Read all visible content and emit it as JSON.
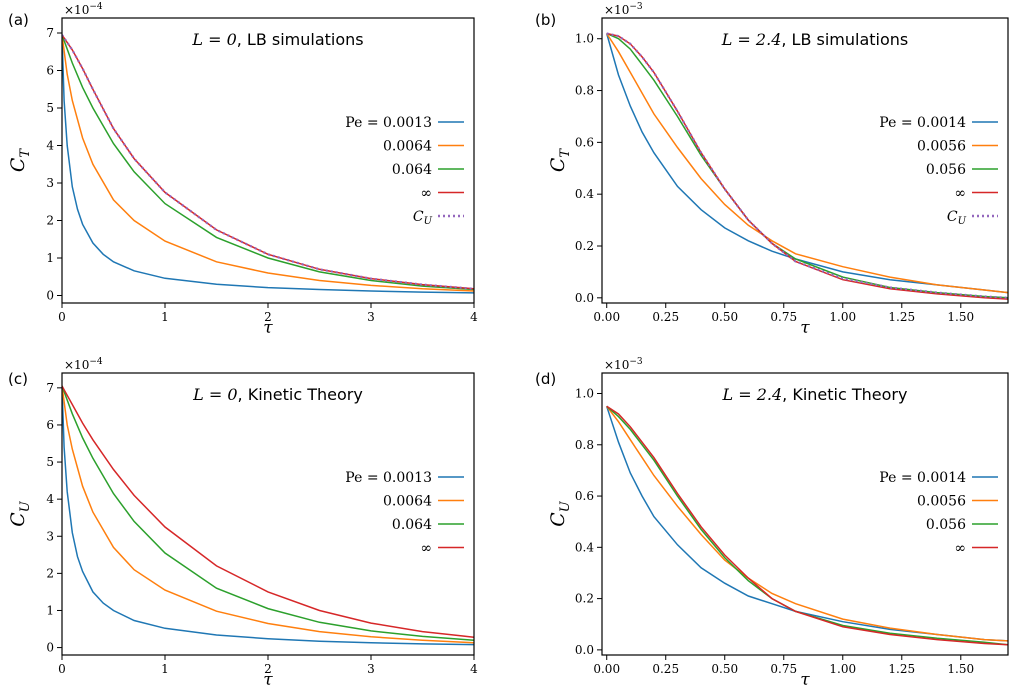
{
  "chart_data": [
    {
      "type": "line",
      "panel_label": "(a)",
      "title_math": "L = 0",
      "title_text": ", LB simulations",
      "scale_label": "×10",
      "scale_exp": "−4",
      "xlabel": "τ",
      "ylabel": "C",
      "ylabel_sub": "T",
      "xlim": [
        0,
        4
      ],
      "ylim": [
        -0.2,
        7.4
      ],
      "xticks": [
        0,
        1,
        2,
        3,
        4
      ],
      "yticks": [
        0,
        1,
        2,
        3,
        4,
        5,
        6,
        7
      ],
      "xtick_labels": [
        "0",
        "1",
        "2",
        "3",
        "4"
      ],
      "ytick_labels": [
        "0",
        "1",
        "2",
        "3",
        "4",
        "5",
        "6",
        "7"
      ],
      "legend": [
        "Pe = 0.0013",
        "0.0064",
        "0.064",
        "∞",
        "C_U"
      ],
      "series": [
        {
          "name": "Pe = 0.0013",
          "color": "#1f77b4",
          "x": [
            0,
            0.02,
            0.05,
            0.1,
            0.15,
            0.2,
            0.3,
            0.4,
            0.5,
            0.7,
            1.0,
            1.5,
            2.0,
            2.5,
            3.0,
            3.5,
            4.0
          ],
          "y": [
            6.95,
            5.2,
            4.0,
            2.9,
            2.3,
            1.9,
            1.4,
            1.1,
            0.9,
            0.66,
            0.46,
            0.3,
            0.21,
            0.16,
            0.12,
            0.09,
            0.07
          ]
        },
        {
          "name": "0.0064",
          "color": "#ff7f0e",
          "x": [
            0,
            0.05,
            0.1,
            0.2,
            0.3,
            0.5,
            0.7,
            1.0,
            1.5,
            2.0,
            2.5,
            3.0,
            3.5,
            4.0
          ],
          "y": [
            6.95,
            5.9,
            5.2,
            4.2,
            3.5,
            2.55,
            2.0,
            1.45,
            0.9,
            0.6,
            0.4,
            0.27,
            0.18,
            0.12
          ]
        },
        {
          "name": "0.064",
          "color": "#2ca02c",
          "x": [
            0,
            0.1,
            0.2,
            0.3,
            0.5,
            0.7,
            1.0,
            1.5,
            2.0,
            2.5,
            3.0,
            3.5,
            4.0
          ],
          "y": [
            6.95,
            6.2,
            5.55,
            5.0,
            4.05,
            3.3,
            2.45,
            1.55,
            1.0,
            0.63,
            0.4,
            0.25,
            0.16
          ]
        },
        {
          "name": "∞",
          "color": "#d62728",
          "x": [
            0,
            0.1,
            0.2,
            0.3,
            0.5,
            0.7,
            1.0,
            1.5,
            2.0,
            2.5,
            3.0,
            3.5,
            4.0
          ],
          "y": [
            6.95,
            6.55,
            6.05,
            5.5,
            4.45,
            3.65,
            2.75,
            1.75,
            1.1,
            0.7,
            0.45,
            0.29,
            0.18
          ]
        },
        {
          "name": "C_U",
          "color": "#9467bd",
          "dash": true,
          "x": [
            0,
            0.1,
            0.2,
            0.3,
            0.5,
            0.7,
            1.0,
            1.5,
            2.0,
            2.5,
            3.0,
            3.5,
            4.0
          ],
          "y": [
            6.95,
            6.55,
            6.05,
            5.5,
            4.45,
            3.65,
            2.75,
            1.75,
            1.1,
            0.7,
            0.45,
            0.29,
            0.18
          ]
        }
      ]
    },
    {
      "type": "line",
      "panel_label": "(b)",
      "title_math": "L = 2.4",
      "title_text": ", LB simulations",
      "scale_label": "×10",
      "scale_exp": "−3",
      "xlabel": "τ",
      "ylabel": "C",
      "ylabel_sub": "T",
      "xlim": [
        -0.02,
        1.7
      ],
      "ylim": [
        -0.02,
        1.08
      ],
      "xticks": [
        0,
        0.25,
        0.5,
        0.75,
        1.0,
        1.25,
        1.5
      ],
      "yticks": [
        0,
        0.2,
        0.4,
        0.6,
        0.8,
        1.0
      ],
      "xtick_labels": [
        "0.00",
        "0.25",
        "0.50",
        "0.75",
        "1.00",
        "1.25",
        "1.50"
      ],
      "ytick_labels": [
        "0.0",
        "0.2",
        "0.4",
        "0.6",
        "0.8",
        "1.0"
      ],
      "legend": [
        "Pe = 0.0014",
        "0.0056",
        "0.056",
        "∞",
        "C_U"
      ],
      "series": [
        {
          "name": "Pe = 0.0014",
          "color": "#1f77b4",
          "x": [
            0,
            0.05,
            0.1,
            0.15,
            0.2,
            0.3,
            0.4,
            0.5,
            0.6,
            0.7,
            0.8,
            1.0,
            1.2,
            1.4,
            1.6,
            1.7
          ],
          "y": [
            1.02,
            0.86,
            0.74,
            0.64,
            0.56,
            0.43,
            0.34,
            0.27,
            0.22,
            0.18,
            0.15,
            0.1,
            0.07,
            0.05,
            0.03,
            0.02
          ]
        },
        {
          "name": "0.0056",
          "color": "#ff7f0e",
          "x": [
            0,
            0.05,
            0.1,
            0.15,
            0.2,
            0.3,
            0.4,
            0.5,
            0.6,
            0.7,
            0.8,
            1.0,
            1.2,
            1.4,
            1.6,
            1.7
          ],
          "y": [
            1.02,
            0.95,
            0.87,
            0.79,
            0.71,
            0.58,
            0.46,
            0.36,
            0.28,
            0.22,
            0.17,
            0.12,
            0.08,
            0.05,
            0.03,
            0.02
          ]
        },
        {
          "name": "0.056",
          "color": "#2ca02c",
          "x": [
            0,
            0.05,
            0.1,
            0.15,
            0.2,
            0.3,
            0.4,
            0.5,
            0.6,
            0.7,
            0.8,
            1.0,
            1.2,
            1.4,
            1.6,
            1.7
          ],
          "y": [
            1.02,
            1.0,
            0.96,
            0.9,
            0.84,
            0.7,
            0.55,
            0.42,
            0.3,
            0.21,
            0.15,
            0.08,
            0.04,
            0.02,
            0.005,
            0.0
          ]
        },
        {
          "name": "∞",
          "color": "#d62728",
          "x": [
            0,
            0.05,
            0.1,
            0.15,
            0.2,
            0.3,
            0.4,
            0.5,
            0.6,
            0.7,
            0.8,
            1.0,
            1.2,
            1.4,
            1.6,
            1.7
          ],
          "y": [
            1.02,
            1.01,
            0.98,
            0.93,
            0.87,
            0.72,
            0.56,
            0.42,
            0.3,
            0.21,
            0.14,
            0.07,
            0.035,
            0.015,
            0.0,
            -0.005
          ]
        },
        {
          "name": "C_U",
          "color": "#9467bd",
          "dash": true,
          "x": [
            0,
            0.05,
            0.1,
            0.15,
            0.2,
            0.3,
            0.4,
            0.5,
            0.6,
            0.7,
            0.8,
            1.0,
            1.2,
            1.4,
            1.6,
            1.7
          ],
          "y": [
            1.02,
            1.01,
            0.98,
            0.93,
            0.87,
            0.72,
            0.56,
            0.42,
            0.3,
            0.21,
            0.14,
            0.075,
            0.04,
            0.02,
            0.005,
            0.0
          ]
        }
      ]
    },
    {
      "type": "line",
      "panel_label": "(c)",
      "title_math": "L = 0",
      "title_text": ", Kinetic Theory",
      "scale_label": "×10",
      "scale_exp": "−4",
      "xlabel": "τ",
      "ylabel": "C",
      "ylabel_sub": "U",
      "xlim": [
        0,
        4
      ],
      "ylim": [
        -0.2,
        7.4
      ],
      "xticks": [
        0,
        1,
        2,
        3,
        4
      ],
      "yticks": [
        0,
        1,
        2,
        3,
        4,
        5,
        6,
        7
      ],
      "xtick_labels": [
        "0",
        "1",
        "2",
        "3",
        "4"
      ],
      "ytick_labels": [
        "0",
        "1",
        "2",
        "3",
        "4",
        "5",
        "6",
        "7"
      ],
      "legend": [
        "Pe = 0.0013",
        "0.0064",
        "0.064",
        "∞"
      ],
      "series": [
        {
          "name": "Pe = 0.0013",
          "color": "#1f77b4",
          "x": [
            0,
            0.02,
            0.05,
            0.1,
            0.15,
            0.2,
            0.3,
            0.4,
            0.5,
            0.7,
            1.0,
            1.5,
            2.0,
            2.5,
            3.0,
            3.5,
            4.0
          ],
          "y": [
            7.05,
            5.4,
            4.2,
            3.1,
            2.45,
            2.05,
            1.5,
            1.2,
            1.0,
            0.73,
            0.52,
            0.34,
            0.24,
            0.17,
            0.13,
            0.1,
            0.08
          ]
        },
        {
          "name": "0.0064",
          "color": "#ff7f0e",
          "x": [
            0,
            0.05,
            0.1,
            0.2,
            0.3,
            0.5,
            0.7,
            1.0,
            1.5,
            2.0,
            2.5,
            3.0,
            3.5,
            4.0
          ],
          "y": [
            7.05,
            6.0,
            5.35,
            4.35,
            3.65,
            2.7,
            2.1,
            1.55,
            0.98,
            0.65,
            0.43,
            0.29,
            0.2,
            0.13
          ]
        },
        {
          "name": "0.064",
          "color": "#2ca02c",
          "x": [
            0,
            0.1,
            0.2,
            0.3,
            0.5,
            0.7,
            1.0,
            1.5,
            2.0,
            2.5,
            3.0,
            3.5,
            4.0
          ],
          "y": [
            7.05,
            6.3,
            5.65,
            5.1,
            4.15,
            3.4,
            2.55,
            1.6,
            1.05,
            0.68,
            0.45,
            0.3,
            0.2
          ]
        },
        {
          "name": "∞",
          "color": "#d62728",
          "x": [
            0,
            0.1,
            0.2,
            0.3,
            0.5,
            0.7,
            1.0,
            1.5,
            2.0,
            2.5,
            3.0,
            3.5,
            4.0
          ],
          "y": [
            7.05,
            6.55,
            6.05,
            5.6,
            4.8,
            4.1,
            3.25,
            2.2,
            1.5,
            1.0,
            0.66,
            0.43,
            0.28
          ]
        }
      ]
    },
    {
      "type": "line",
      "panel_label": "(d)",
      "title_math": "L = 2.4",
      "title_text": ", Kinetic Theory",
      "scale_label": "×10",
      "scale_exp": "−3",
      "xlabel": "τ",
      "ylabel": "C",
      "ylabel_sub": "U",
      "xlim": [
        -0.02,
        1.7
      ],
      "ylim": [
        -0.02,
        1.08
      ],
      "xticks": [
        0,
        0.25,
        0.5,
        0.75,
        1.0,
        1.25,
        1.5
      ],
      "yticks": [
        0,
        0.2,
        0.4,
        0.6,
        0.8,
        1.0
      ],
      "xtick_labels": [
        "0.00",
        "0.25",
        "0.50",
        "0.75",
        "1.00",
        "1.25",
        "1.50"
      ],
      "ytick_labels": [
        "0.0",
        "0.2",
        "0.4",
        "0.6",
        "0.8",
        "1.0"
      ],
      "legend": [
        "Pe = 0.0014",
        "0.0056",
        "0.056",
        "∞"
      ],
      "series": [
        {
          "name": "Pe = 0.0014",
          "color": "#1f77b4",
          "x": [
            0,
            0.05,
            0.1,
            0.15,
            0.2,
            0.3,
            0.4,
            0.5,
            0.6,
            0.7,
            0.8,
            1.0,
            1.2,
            1.4,
            1.6,
            1.7
          ],
          "y": [
            0.95,
            0.81,
            0.69,
            0.6,
            0.52,
            0.41,
            0.32,
            0.26,
            0.21,
            0.18,
            0.15,
            0.11,
            0.08,
            0.06,
            0.04,
            0.035
          ]
        },
        {
          "name": "0.0056",
          "color": "#ff7f0e",
          "x": [
            0,
            0.05,
            0.1,
            0.15,
            0.2,
            0.3,
            0.4,
            0.5,
            0.6,
            0.7,
            0.8,
            1.0,
            1.2,
            1.4,
            1.6,
            1.7
          ],
          "y": [
            0.95,
            0.89,
            0.82,
            0.75,
            0.68,
            0.56,
            0.45,
            0.35,
            0.28,
            0.22,
            0.18,
            0.12,
            0.085,
            0.06,
            0.04,
            0.035
          ]
        },
        {
          "name": "0.056",
          "color": "#2ca02c",
          "x": [
            0,
            0.05,
            0.1,
            0.15,
            0.2,
            0.3,
            0.4,
            0.5,
            0.6,
            0.7,
            0.8,
            1.0,
            1.2,
            1.4,
            1.6,
            1.7
          ],
          "y": [
            0.95,
            0.91,
            0.86,
            0.8,
            0.74,
            0.6,
            0.47,
            0.36,
            0.27,
            0.2,
            0.15,
            0.095,
            0.065,
            0.045,
            0.03,
            0.02
          ]
        },
        {
          "name": "∞",
          "color": "#d62728",
          "x": [
            0,
            0.05,
            0.1,
            0.15,
            0.2,
            0.3,
            0.4,
            0.5,
            0.6,
            0.7,
            0.8,
            1.0,
            1.2,
            1.4,
            1.6,
            1.7
          ],
          "y": [
            0.95,
            0.92,
            0.87,
            0.81,
            0.75,
            0.61,
            0.48,
            0.37,
            0.28,
            0.2,
            0.15,
            0.09,
            0.06,
            0.04,
            0.025,
            0.02
          ]
        }
      ]
    }
  ]
}
